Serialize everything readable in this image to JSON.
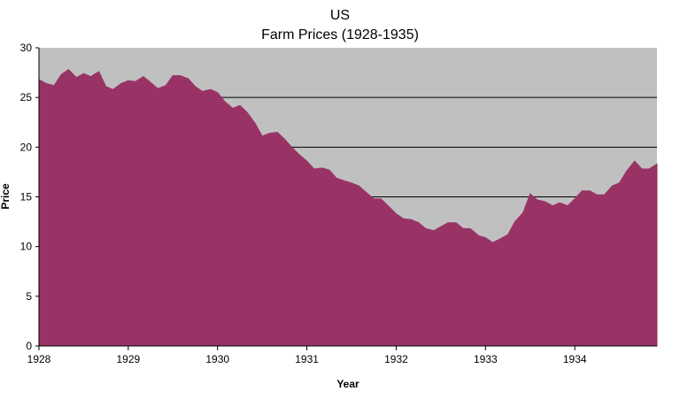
{
  "chart_data": {
    "type": "area",
    "title": "US",
    "subtitle": "Farm Prices (1928-1935)",
    "xlabel": "Year",
    "ylabel": "Price",
    "xlim": [
      1928.0,
      1934.92
    ],
    "ylim": [
      0,
      30
    ],
    "x_ticks": [
      "1928",
      "1929",
      "1930",
      "1931",
      "1932",
      "1933",
      "1934"
    ],
    "y_ticks": [
      "0",
      "5",
      "10",
      "15",
      "20",
      "25",
      "30"
    ],
    "grid": "horizontal",
    "legend": "none",
    "colors": {
      "area_fill": "#993366",
      "plot_background": "#c0c0c0",
      "gridline": "#000000"
    },
    "series": [
      {
        "x": [
          1928.0,
          1928.08,
          1928.17,
          1928.25,
          1928.33,
          1928.42,
          1928.5,
          1928.58,
          1928.67,
          1928.75,
          1928.83,
          1928.92,
          1929.0,
          1929.08,
          1929.17,
          1929.25,
          1929.33,
          1929.42,
          1929.5,
          1929.58,
          1929.67,
          1929.75,
          1929.83,
          1929.92,
          1930.0,
          1930.08,
          1930.17,
          1930.25,
          1930.33,
          1930.42,
          1930.5,
          1930.58,
          1930.67,
          1930.75,
          1930.83,
          1930.92,
          1931.0,
          1931.08,
          1931.17,
          1931.25,
          1931.33,
          1931.42,
          1931.5,
          1931.58,
          1931.67,
          1931.75,
          1931.83,
          1931.92,
          1932.0,
          1932.08,
          1932.17,
          1932.25,
          1932.33,
          1932.42,
          1932.5,
          1932.58,
          1932.67,
          1932.75,
          1932.83,
          1932.92,
          1933.0,
          1933.08,
          1933.17,
          1933.25,
          1933.33,
          1933.42,
          1933.5,
          1933.58,
          1933.67,
          1933.75,
          1933.83,
          1933.92,
          1934.0,
          1934.08,
          1934.17,
          1934.25,
          1934.33,
          1934.42,
          1934.5,
          1934.58,
          1934.67,
          1934.75,
          1934.83,
          1934.92
        ],
        "values": [
          26.8,
          26.4,
          26.2,
          27.3,
          27.8,
          27.0,
          27.4,
          27.1,
          27.6,
          26.1,
          25.8,
          26.4,
          26.7,
          26.6,
          27.1,
          26.5,
          25.9,
          26.2,
          27.2,
          27.2,
          26.9,
          26.1,
          25.6,
          25.8,
          25.5,
          24.6,
          23.9,
          24.2,
          23.5,
          22.4,
          21.1,
          21.4,
          21.5,
          20.8,
          20.0,
          19.2,
          18.6,
          17.8,
          17.9,
          17.7,
          16.9,
          16.6,
          16.4,
          16.1,
          15.4,
          14.8,
          14.8,
          14.0,
          13.3,
          12.8,
          12.7,
          12.4,
          11.8,
          11.6,
          12.0,
          12.4,
          12.4,
          11.8,
          11.8,
          11.1,
          10.9,
          10.4,
          10.8,
          11.2,
          12.5,
          13.4,
          15.3,
          14.7,
          14.5,
          14.1,
          14.4,
          14.1,
          14.8,
          15.6,
          15.6,
          15.2,
          15.2,
          16.1,
          16.4,
          17.6,
          18.6,
          17.8,
          17.8,
          18.3
        ]
      }
    ]
  }
}
